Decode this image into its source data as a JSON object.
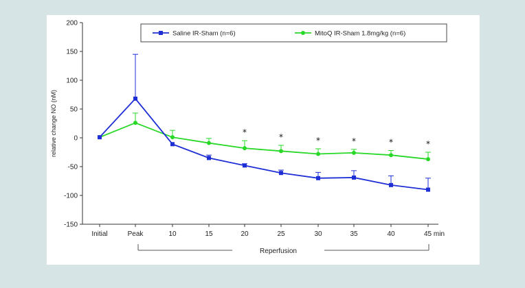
{
  "chart_data": {
    "type": "line",
    "title": "",
    "ylabel": "relative change NO (nM)",
    "xlabel": "",
    "ylim": [
      -150,
      200
    ],
    "yticks": [
      200,
      150,
      100,
      50,
      0,
      -50,
      -100,
      -150
    ],
    "categories": [
      "Initial",
      "Peak",
      "10",
      "15",
      "20",
      "25",
      "30",
      "35",
      "40",
      "45 min"
    ],
    "reperfusion_label": "Reperfusion",
    "legend_position": "top",
    "grid": false,
    "series": [
      {
        "name": "Saline IR-Sham (n=6)",
        "color": "#1f2fd6",
        "marker": "square",
        "values": [
          1,
          68,
          -11,
          -35,
          -48,
          -61,
          -70,
          -69,
          -82,
          -90
        ],
        "errors": [
          0,
          77,
          0,
          5,
          3,
          5,
          10,
          12,
          16,
          20
        ]
      },
      {
        "name": "MitoQ IR-Sham 1.8mg/kg (n=6)",
        "color": "#27d826",
        "marker": "circle",
        "values": [
          1,
          26,
          1,
          -9,
          -18,
          -23,
          -28,
          -26,
          -30,
          -37
        ],
        "errors": [
          0,
          17,
          12,
          8,
          13,
          10,
          9,
          6,
          8,
          12
        ]
      }
    ],
    "significance": [
      {
        "category": "20",
        "label": "*"
      },
      {
        "category": "25",
        "label": "*"
      },
      {
        "category": "30",
        "label": "*"
      },
      {
        "category": "35",
        "label": "*"
      },
      {
        "category": "40",
        "label": "*"
      },
      {
        "category": "45 min",
        "label": "*"
      }
    ]
  }
}
